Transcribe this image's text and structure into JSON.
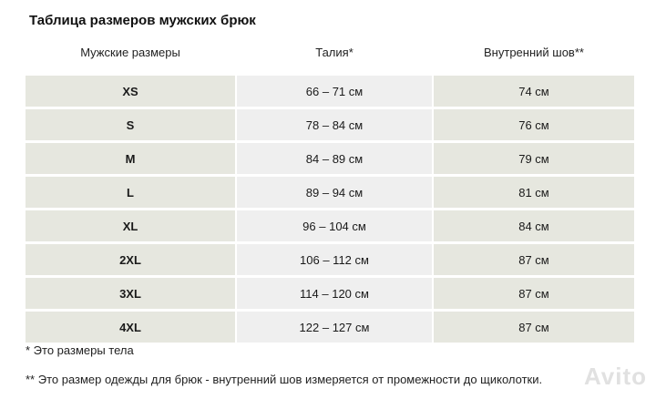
{
  "title": "Таблица размеров мужских брюк",
  "columns": [
    "Мужские размеры",
    "Талия*",
    "Внутренний шов**"
  ],
  "rows": [
    {
      "size": "XS",
      "waist": "66 – 71 см",
      "inseam": "74 см"
    },
    {
      "size": "S",
      "waist": "78 – 84 см",
      "inseam": "76 см"
    },
    {
      "size": "M",
      "waist": "84 – 89 см",
      "inseam": "79 см"
    },
    {
      "size": "L",
      "waist": "89 – 94 см",
      "inseam": "81 см"
    },
    {
      "size": "XL",
      "waist": "96 – 104 см",
      "inseam": "84 см"
    },
    {
      "size": "2XL",
      "waist": "106 – 112 см",
      "inseam": "87 см"
    },
    {
      "size": "3XL",
      "waist": "114 – 120 см",
      "inseam": "87 см"
    },
    {
      "size": "4XL",
      "waist": "122 – 127 см",
      "inseam": "87 см"
    }
  ],
  "notes": {
    "note1": "* Это размеры тела",
    "note2": "** Это размер одежды для брюк - внутренний шов измеряется от промежности до щиколотки."
  },
  "watermark": "Avito",
  "colors": {
    "size_cell": "#e6e7df",
    "waist_cell": "#efefef",
    "inseam_cell": "#e6e7df"
  }
}
